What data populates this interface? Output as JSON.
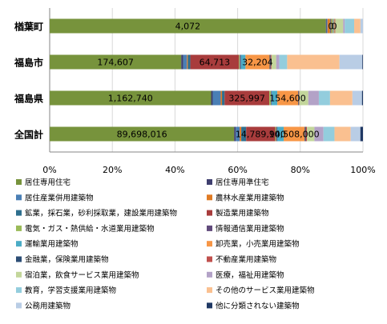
{
  "chart_data": {
    "type": "bar",
    "orientation": "horizontal",
    "stacked": "percent",
    "categories": [
      "楢葉町",
      "福島市",
      "福島県",
      "全国計"
    ],
    "xlim": [
      0,
      100
    ],
    "xticks": [
      "0%",
      "20%",
      "40%",
      "60%",
      "80%",
      "100%"
    ],
    "grid": true,
    "legend_position": "bottom",
    "series": [
      {
        "name": "居住専用住宅",
        "color": "#77933c",
        "values": [
          88.0,
          42.0,
          50.5,
          57.0
        ]
      },
      {
        "name": "居住専用準住宅",
        "color": "#3f3f6f",
        "values": [
          0.2,
          0.6,
          0.5,
          0.5
        ]
      },
      {
        "name": "居住産業併用建築物",
        "color": "#4a7fb5",
        "values": [
          0.3,
          1.2,
          2.5,
          1.2
        ]
      },
      {
        "name": "農林水産業用建築物",
        "color": "#e07b24",
        "values": [
          0.8,
          0.3,
          0.4,
          0.5
        ]
      },
      {
        "name": "鉱業，採石業，砂利採取業，建設業用建築物",
        "color": "#2e6f8e",
        "values": [
          0.2,
          0.8,
          0.8,
          1.5
        ]
      },
      {
        "name": "製造業用建築物",
        "color": "#a83c3c",
        "values": [
          0.2,
          15.5,
          14.0,
          9.0
        ]
      },
      {
        "name": "電気・ガス・熱供給・水道業用建築物",
        "color": "#9bbb59",
        "values": [
          0.5,
          0.3,
          0.5,
          0.3
        ]
      },
      {
        "name": "情報通信業用建築物",
        "color": "#604a7b",
        "values": [
          0.1,
          0.3,
          0.2,
          0.3
        ]
      },
      {
        "name": "運輸業用建築物",
        "color": "#4bacc6",
        "values": [
          0.2,
          1.5,
          1.8,
          2.0
        ]
      },
      {
        "name": "卸売業，小売業用建築物",
        "color": "#f79646",
        "values": [
          0.3,
          7.7,
          6.5,
          6.5
        ]
      },
      {
        "name": "金融業，保険業用建築物",
        "color": "#2c4d75",
        "values": [
          0.1,
          0.3,
          0.2,
          0.3
        ]
      },
      {
        "name": "不動産業用建築物",
        "color": "#c0504d",
        "values": [
          0.1,
          0.3,
          0.2,
          0.4
        ]
      },
      {
        "name": "宿泊業，飲食サービス業用建築物",
        "color": "#c3d69b",
        "values": [
          2.5,
          1.5,
          2.8,
          2.3
        ]
      },
      {
        "name": "医療，福祉用建築物",
        "color": "#b3a2c7",
        "values": [
          0.5,
          1.0,
          3.3,
          2.8
        ]
      },
      {
        "name": "教育，学習支援業用建築物",
        "color": "#93cddd",
        "values": [
          3.0,
          2.5,
          3.5,
          3.4
        ]
      },
      {
        "name": "その他のサービス業用建築物",
        "color": "#fac090",
        "values": [
          2.0,
          16.7,
          7.0,
          5.0
        ]
      },
      {
        "name": "公務用建築物",
        "color": "#b9cde5",
        "values": [
          0.8,
          7.3,
          3.0,
          3.0
        ]
      },
      {
        "name": "他に分類されない建築物",
        "color": "#1f3864",
        "values": [
          0.0,
          0.2,
          0.3,
          0.8
        ]
      }
    ],
    "data_labels": [
      {
        "category": "楢葉町",
        "series": "居住専用住宅",
        "text": "4,072"
      },
      {
        "category": "楢葉町",
        "series": "製造業用建築物",
        "text": "0"
      },
      {
        "category": "楢葉町",
        "series": "卸売業，小売業用建築物",
        "text": "0"
      },
      {
        "category": "福島市",
        "series": "居住専用住宅",
        "text": "174,607"
      },
      {
        "category": "福島市",
        "series": "製造業用建築物",
        "text": "64,713"
      },
      {
        "category": "福島市",
        "series": "卸売業，小売業用建築物",
        "text": "32,204"
      },
      {
        "category": "福島県",
        "series": "居住専用住宅",
        "text": "1,162,740"
      },
      {
        "category": "福島県",
        "series": "製造業用建築物",
        "text": "325,997"
      },
      {
        "category": "福島県",
        "series": "卸売業，小売業用建築物",
        "text": "154,600"
      },
      {
        "category": "全国計",
        "series": "居住専用住宅",
        "text": "89,698,016"
      },
      {
        "category": "全国計",
        "series": "製造業用建築物",
        "text": "14,789,940"
      },
      {
        "category": "全国計",
        "series": "卸売業，小売業用建築物",
        "text": "10,508,000"
      }
    ]
  }
}
